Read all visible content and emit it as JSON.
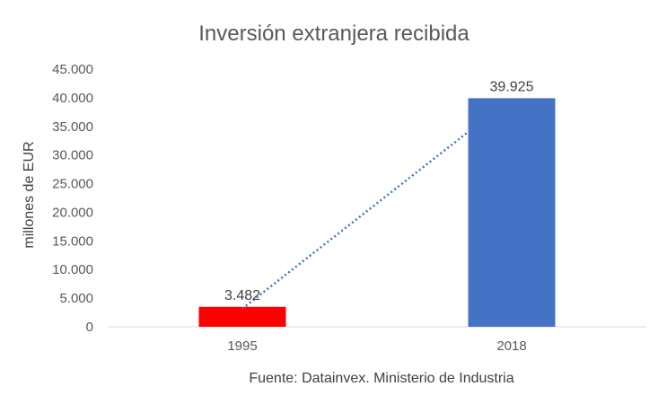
{
  "chart_data": {
    "type": "bar",
    "title": "Inversión extranjera recibida",
    "xlabel": "",
    "ylabel": "millones de EUR",
    "categories": [
      "1995",
      "2018"
    ],
    "values": [
      3482,
      39925
    ],
    "data_labels": [
      "3.482",
      "39.925"
    ],
    "bar_colors": [
      "#ff0000",
      "#4472c4"
    ],
    "ylim": [
      0,
      45000
    ],
    "yticks": [
      0,
      5000,
      10000,
      15000,
      20000,
      25000,
      30000,
      35000,
      40000,
      45000
    ],
    "ytick_labels": [
      "0",
      "5.000",
      "10.000",
      "15.000",
      "20.000",
      "25.000",
      "30.000",
      "35.000",
      "40.000",
      "45.000"
    ],
    "grid": false,
    "trendline": {
      "type": "linear",
      "style": "dotted",
      "color": "#4472c4"
    },
    "source": "Fuente: Datainvex. Ministerio de Industria"
  }
}
